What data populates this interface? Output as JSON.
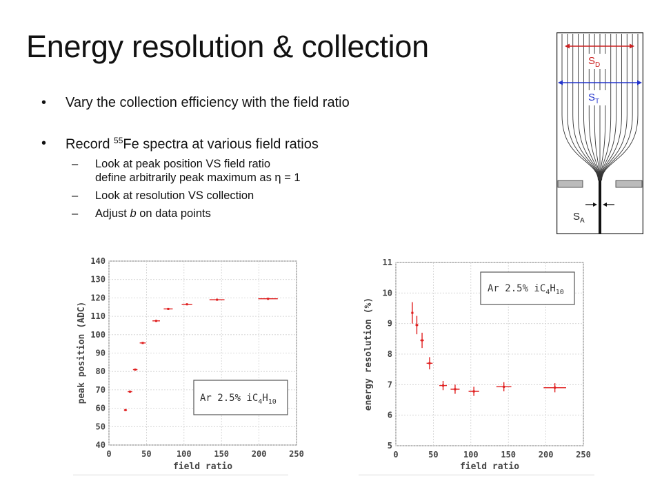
{
  "slide": {
    "title": "Energy resolution & collection",
    "bullets": [
      {
        "text": "Vary the collection efficiency with the field ratio"
      },
      {
        "text_pre": "Record ",
        "sup": "55",
        "text_post": "Fe spectra at various field ratios",
        "subs": [
          {
            "line1": "Look at peak position VS field ratio",
            "line2": "define arbitrarily peak maximum as η = 1"
          },
          {
            "line1": "Look at resolution VS collection"
          },
          {
            "pre": "Adjust ",
            "em": "b",
            "post": " on data points"
          }
        ]
      }
    ],
    "bullet_glyph": "•",
    "dash_glyph": "–"
  },
  "diagram": {
    "label_sd": "S",
    "label_sd_sub": "D",
    "label_st": "S",
    "label_st_sub": "T",
    "label_sa": "S",
    "label_sa_sub": "A",
    "colors": {
      "sd": "#cc2222",
      "st": "#2233cc",
      "lines": "#333333",
      "plate": "#bbbbbb"
    }
  },
  "chart_data": [
    {
      "type": "scatter",
      "xlabel": "field ratio",
      "ylabel": "peak position (ADC)",
      "xlim": [
        0,
        250
      ],
      "ylim": [
        40,
        140
      ],
      "xticks": [
        0,
        50,
        100,
        150,
        200,
        250
      ],
      "yticks": [
        40,
        50,
        60,
        70,
        80,
        90,
        100,
        110,
        120,
        130,
        140
      ],
      "grid": true,
      "legend": {
        "pre": "Ar 2.5% iC",
        "sub1": "4",
        "mid": "H",
        "sub2": "10",
        "placement": "bottom-right"
      },
      "points": [
        {
          "x": 22,
          "y": 59,
          "xerr": 2,
          "yerr": 0.5
        },
        {
          "x": 28,
          "y": 69,
          "xerr": 3,
          "yerr": 0.5
        },
        {
          "x": 35,
          "y": 81,
          "xerr": 3,
          "yerr": 0.5
        },
        {
          "x": 45,
          "y": 95.5,
          "xerr": 4,
          "yerr": 0.5
        },
        {
          "x": 63,
          "y": 107.5,
          "xerr": 5,
          "yerr": 0.5
        },
        {
          "x": 79,
          "y": 114,
          "xerr": 6,
          "yerr": 0.5
        },
        {
          "x": 104,
          "y": 116.5,
          "xerr": 7,
          "yerr": 0.5
        },
        {
          "x": 144,
          "y": 119,
          "xerr": 10,
          "yerr": 0.5
        },
        {
          "x": 212,
          "y": 119.5,
          "xerr": 13,
          "yerr": 0.5
        }
      ],
      "color": "#e02020"
    },
    {
      "type": "scatter",
      "xlabel": "field ratio",
      "ylabel": "energy resolution (%)",
      "xlim": [
        0,
        250
      ],
      "ylim": [
        5,
        11
      ],
      "xticks": [
        0,
        50,
        100,
        150,
        200,
        250
      ],
      "yticks": [
        5,
        6,
        7,
        8,
        9,
        10,
        11
      ],
      "grid": true,
      "legend": {
        "pre": "Ar 2.5% iC",
        "sub1": "4",
        "mid": "H",
        "sub2": "10",
        "placement": "top-right"
      },
      "points": [
        {
          "x": 22,
          "y": 9.35,
          "xerr": 1.5,
          "yerr": 0.35
        },
        {
          "x": 28,
          "y": 8.95,
          "xerr": 2,
          "yerr": 0.3
        },
        {
          "x": 35,
          "y": 8.45,
          "xerr": 2.5,
          "yerr": 0.25
        },
        {
          "x": 45,
          "y": 7.7,
          "xerr": 4,
          "yerr": 0.2
        },
        {
          "x": 63,
          "y": 6.97,
          "xerr": 5,
          "yerr": 0.15
        },
        {
          "x": 79,
          "y": 6.85,
          "xerr": 6,
          "yerr": 0.15
        },
        {
          "x": 104,
          "y": 6.78,
          "xerr": 7,
          "yerr": 0.15
        },
        {
          "x": 144,
          "y": 6.93,
          "xerr": 10,
          "yerr": 0.15
        },
        {
          "x": 212,
          "y": 6.9,
          "xerr": 15,
          "yerr": 0.15
        }
      ],
      "color": "#e02020"
    }
  ]
}
